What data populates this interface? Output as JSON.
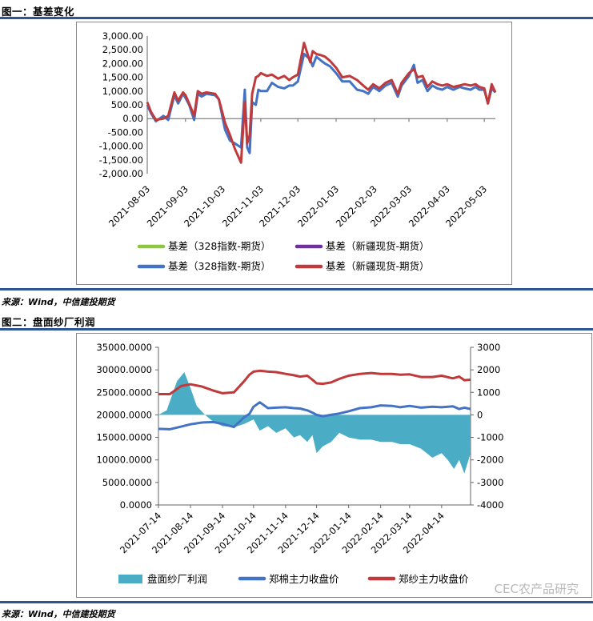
{
  "figure1": {
    "title": "图一：基差变化",
    "source": "来源：Wind，中信建投期货",
    "chart_data": {
      "type": "line",
      "yticks": [
        "3,000.00",
        "2,500.00",
        "2,000.00",
        "1,500.00",
        "1,000.00",
        "500.00",
        "0.00",
        "-500.00",
        "-1,000.00",
        "-1,500.00",
        "-2,000.00"
      ],
      "ylim": [
        -2000,
        3000
      ],
      "xticks": [
        "2021-08-03",
        "2021-09-03",
        "2021-10-03",
        "2021-11-03",
        "2021-12-03",
        "2022-01-03",
        "2022-02-03",
        "2022-03-03",
        "2022-04-03",
        "2022-05-03"
      ],
      "xlim": [
        "2021-08-03",
        "2022-05-12"
      ],
      "legend": [
        {
          "name": "基差（328指数-期货）",
          "color": "#8dc63f"
        },
        {
          "name": "基差（新疆现货-期货）",
          "color": "#7030a0"
        },
        {
          "name": "基差（328指数-期货）",
          "color": "#4472c4"
        },
        {
          "name": "基差（新疆现货-期货）",
          "color": "#c0393b"
        }
      ],
      "series": [
        {
          "name": "基差（328指数-期货）",
          "color": "#4472c4",
          "x": [
            "2021-08-03",
            "2021-08-06",
            "2021-08-10",
            "2021-08-16",
            "2021-08-20",
            "2021-08-25",
            "2021-08-28",
            "2021-09-01",
            "2021-09-03",
            "2021-09-06",
            "2021-09-10",
            "2021-09-13",
            "2021-09-16",
            "2021-09-20",
            "2021-09-27",
            "2021-09-30",
            "2021-10-05",
            "2021-10-09",
            "2021-10-13",
            "2021-10-18",
            "2021-10-21",
            "2021-10-23",
            "2021-10-25",
            "2021-10-27",
            "2021-10-30",
            "2021-11-01",
            "2021-11-03",
            "2021-11-08",
            "2021-11-12",
            "2021-11-17",
            "2021-11-22",
            "2021-11-26",
            "2021-11-29",
            "2021-12-03",
            "2021-12-08",
            "2021-12-13",
            "2021-12-15",
            "2021-12-18",
            "2021-12-22",
            "2021-12-25",
            "2021-12-29",
            "2022-01-03",
            "2022-01-08",
            "2022-01-14",
            "2022-01-20",
            "2022-01-25",
            "2022-01-29",
            "2022-02-02",
            "2022-02-07",
            "2022-02-12",
            "2022-02-17",
            "2022-02-22",
            "2022-02-25",
            "2022-03-03",
            "2022-03-07",
            "2022-03-10",
            "2022-03-14",
            "2022-03-18",
            "2022-03-22",
            "2022-03-26",
            "2022-03-30",
            "2022-04-03",
            "2022-04-08",
            "2022-04-13",
            "2022-04-17",
            "2022-04-22",
            "2022-04-26",
            "2022-04-29",
            "2022-05-03",
            "2022-05-06",
            "2022-05-09",
            "2022-05-12"
          ],
          "y": [
            500,
            200,
            -100,
            100,
            -50,
            850,
            550,
            900,
            750,
            500,
            -50,
            900,
            800,
            900,
            850,
            700,
            -400,
            -800,
            -900,
            -1050,
            1050,
            -1050,
            -1250,
            600,
            500,
            1050,
            1000,
            1000,
            1300,
            1150,
            1100,
            1200,
            1200,
            1350,
            2350,
            2150,
            1900,
            2250,
            2100,
            2000,
            1900,
            1650,
            1350,
            1350,
            1050,
            1000,
            900,
            1150,
            1000,
            1200,
            1300,
            800,
            1200,
            1550,
            1950,
            1300,
            1400,
            1000,
            1200,
            1100,
            1050,
            1150,
            1050,
            1150,
            1100,
            1050,
            1150,
            1050,
            1050,
            550,
            1100,
            950
          ]
        },
        {
          "name": "基差（新疆现货-期货）",
          "color": "#c0393b",
          "x": [
            "2021-08-03",
            "2021-08-06",
            "2021-08-10",
            "2021-08-16",
            "2021-08-20",
            "2021-08-25",
            "2021-08-28",
            "2021-09-01",
            "2021-09-03",
            "2021-09-06",
            "2021-09-10",
            "2021-09-13",
            "2021-09-16",
            "2021-09-20",
            "2021-09-27",
            "2021-09-30",
            "2021-10-05",
            "2021-10-09",
            "2021-10-13",
            "2021-10-18",
            "2021-10-21",
            "2021-10-23",
            "2021-10-25",
            "2021-10-27",
            "2021-10-30",
            "2021-11-01",
            "2021-11-03",
            "2021-11-08",
            "2021-11-12",
            "2021-11-17",
            "2021-11-22",
            "2021-11-26",
            "2021-11-29",
            "2021-12-03",
            "2021-12-08",
            "2021-12-13",
            "2021-12-15",
            "2021-12-18",
            "2021-12-22",
            "2021-12-25",
            "2021-12-29",
            "2022-01-03",
            "2022-01-08",
            "2022-01-14",
            "2022-01-20",
            "2022-01-25",
            "2022-01-29",
            "2022-02-02",
            "2022-02-07",
            "2022-02-12",
            "2022-02-17",
            "2022-02-22",
            "2022-02-25",
            "2022-03-03",
            "2022-03-07",
            "2022-03-10",
            "2022-03-14",
            "2022-03-18",
            "2022-03-22",
            "2022-03-26",
            "2022-03-30",
            "2022-04-03",
            "2022-04-08",
            "2022-04-13",
            "2022-04-17",
            "2022-04-22",
            "2022-04-26",
            "2022-04-29",
            "2022-05-03",
            "2022-05-06",
            "2022-05-09",
            "2022-05-12"
          ],
          "y": [
            600,
            250,
            -50,
            0,
            100,
            950,
            650,
            950,
            850,
            550,
            100,
            1000,
            900,
            950,
            900,
            700,
            -150,
            -600,
            -1100,
            -1600,
            600,
            -900,
            -600,
            900,
            1500,
            1550,
            1650,
            1550,
            1600,
            1450,
            1550,
            1400,
            1500,
            1600,
            2750,
            2050,
            2450,
            2350,
            2300,
            2250,
            2100,
            1850,
            1500,
            1550,
            1400,
            1200,
            1050,
            1250,
            1100,
            1300,
            1400,
            900,
            1300,
            1650,
            1800,
            1500,
            1550,
            1150,
            1350,
            1250,
            1200,
            1250,
            1150,
            1200,
            1250,
            1200,
            1250,
            1150,
            1100,
            550,
            1250,
            950
          ]
        }
      ]
    }
  },
  "figure2": {
    "title": "图二：盘面纱厂利润",
    "source": "来源：Wind，中信建投期货",
    "chart_data": {
      "type": "line",
      "yticks_left": [
        "35000.0000",
        "30000.0000",
        "25000.0000",
        "20000.0000",
        "15000.0000",
        "10000.0000",
        "5000.0000",
        "0.0000"
      ],
      "ylim_left": [
        0,
        35000
      ],
      "yticks_right": [
        "3000",
        "2000",
        "1000",
        "0",
        "-1000",
        "-2000",
        "-3000",
        "-4000"
      ],
      "ylim_right": [
        -4000,
        3000
      ],
      "xticks": [
        "2021-07-14",
        "2021-08-14",
        "2021-09-14",
        "2021-10-14",
        "2021-11-14",
        "2021-12-14",
        "2022-01-14",
        "2022-02-14",
        "2022-03-14",
        "2022-04-14"
      ],
      "xlim": [
        "2021-07-14",
        "2022-05-12"
      ],
      "legend": [
        {
          "name": "盘面纱厂利润",
          "color": "#4bacc6",
          "kind": "area"
        },
        {
          "name": "郑棉主力收盘价",
          "color": "#4472c4",
          "kind": "line"
        },
        {
          "name": "郑纱主力收盘价",
          "color": "#c0393b",
          "kind": "line"
        }
      ],
      "series": [
        {
          "name": "盘面纱厂利润",
          "axis": "right",
          "color": "#4bacc6",
          "x": [
            "2021-07-14",
            "2021-07-22",
            "2021-08-01",
            "2021-08-08",
            "2021-08-14",
            "2021-08-20",
            "2021-08-28",
            "2021-09-05",
            "2021-09-14",
            "2021-09-25",
            "2021-10-05",
            "2021-10-14",
            "2021-10-20",
            "2021-10-28",
            "2021-11-05",
            "2021-11-14",
            "2021-11-22",
            "2021-11-28",
            "2021-12-05",
            "2021-12-10",
            "2021-12-14",
            "2021-12-20",
            "2021-12-28",
            "2022-01-05",
            "2022-01-14",
            "2022-01-25",
            "2022-02-05",
            "2022-02-14",
            "2022-02-25",
            "2022-03-05",
            "2022-03-14",
            "2022-03-25",
            "2022-04-05",
            "2022-04-14",
            "2022-04-20",
            "2022-04-26",
            "2022-05-01",
            "2022-05-06",
            "2022-05-12"
          ],
          "y": [
            0,
            200,
            1500,
            1900,
            1200,
            400,
            0,
            -300,
            -500,
            -550,
            -400,
            -200,
            -700,
            -500,
            -800,
            -600,
            -1000,
            -900,
            -1200,
            -900,
            -1700,
            -1400,
            -1200,
            -800,
            -1000,
            -1100,
            -1100,
            -1200,
            -1200,
            -1300,
            -1300,
            -1500,
            -1900,
            -1700,
            -2000,
            -2400,
            -2000,
            -2600,
            -1700
          ]
        },
        {
          "name": "郑棉主力收盘价",
          "axis": "left",
          "color": "#4472c4",
          "x": [
            "2021-07-14",
            "2021-07-25",
            "2021-08-05",
            "2021-08-14",
            "2021-08-25",
            "2021-09-05",
            "2021-09-14",
            "2021-09-25",
            "2021-10-05",
            "2021-10-10",
            "2021-10-14",
            "2021-10-20",
            "2021-10-28",
            "2021-11-05",
            "2021-11-14",
            "2021-11-22",
            "2021-11-28",
            "2021-12-05",
            "2021-12-10",
            "2021-12-14",
            "2021-12-20",
            "2021-12-28",
            "2022-01-05",
            "2022-01-14",
            "2022-01-25",
            "2022-02-05",
            "2022-02-14",
            "2022-02-25",
            "2022-03-05",
            "2022-03-14",
            "2022-03-25",
            "2022-04-05",
            "2022-04-14",
            "2022-04-25",
            "2022-05-01",
            "2022-05-06",
            "2022-05-12"
          ],
          "y": [
            16900,
            16800,
            17400,
            17900,
            18300,
            18400,
            18000,
            17300,
            19500,
            20200,
            21800,
            22800,
            21500,
            21600,
            21700,
            21500,
            21400,
            21000,
            20500,
            20000,
            19700,
            20000,
            20300,
            20800,
            21500,
            21700,
            22100,
            22000,
            21700,
            22000,
            21600,
            21800,
            21700,
            21900,
            21300,
            21600,
            21300
          ]
        },
        {
          "name": "郑纱主力收盘价",
          "axis": "left",
          "color": "#c0393b",
          "x": [
            "2021-07-14",
            "2021-07-25",
            "2021-08-05",
            "2021-08-14",
            "2021-08-25",
            "2021-09-05",
            "2021-09-14",
            "2021-09-25",
            "2021-10-05",
            "2021-10-10",
            "2021-10-14",
            "2021-10-20",
            "2021-10-28",
            "2021-11-05",
            "2021-11-14",
            "2021-11-22",
            "2021-11-28",
            "2021-12-05",
            "2021-12-10",
            "2021-12-14",
            "2021-12-20",
            "2021-12-28",
            "2022-01-05",
            "2022-01-14",
            "2022-01-25",
            "2022-02-05",
            "2022-02-14",
            "2022-02-25",
            "2022-03-05",
            "2022-03-14",
            "2022-03-25",
            "2022-04-05",
            "2022-04-14",
            "2022-04-25",
            "2022-05-01",
            "2022-05-06",
            "2022-05-12"
          ],
          "y": [
            24600,
            24600,
            26400,
            26800,
            26300,
            25400,
            24800,
            25000,
            27500,
            28900,
            29600,
            29800,
            29600,
            29500,
            29100,
            28800,
            28500,
            28700,
            27800,
            27000,
            26900,
            27200,
            28000,
            28700,
            29100,
            29300,
            29100,
            29100,
            28900,
            29000,
            28400,
            28400,
            28700,
            28100,
            28500,
            27700,
            27800
          ]
        }
      ]
    }
  },
  "watermark": "CEC农产品研究"
}
